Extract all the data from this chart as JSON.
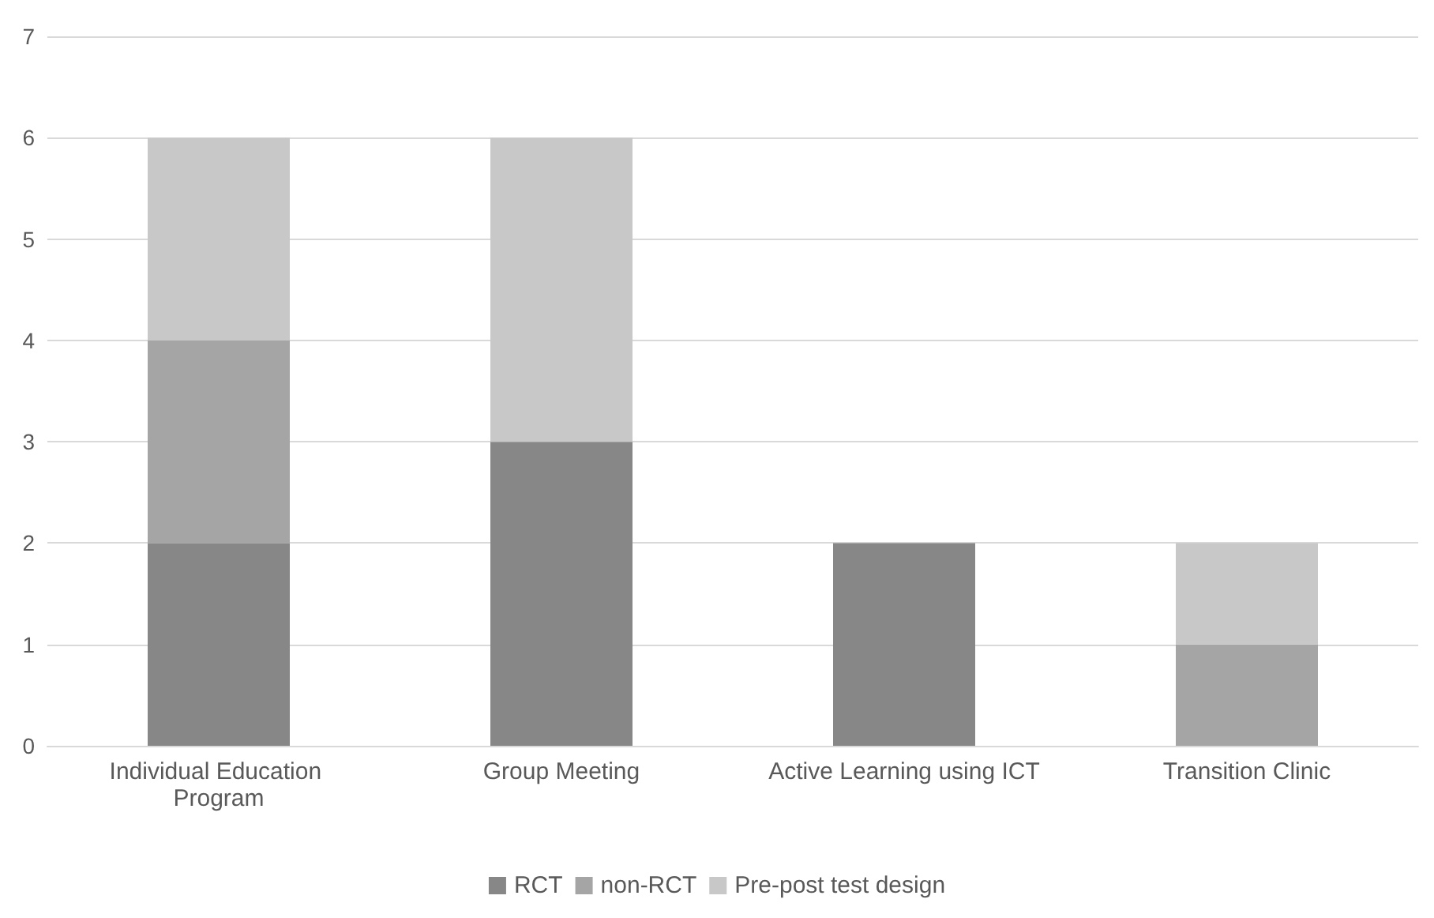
{
  "chart_data": {
    "type": "bar",
    "stacked": true,
    "categories": [
      "Individual Education Program",
      "Group Meeting",
      "Active Learning using ICT",
      "Transition Clinic"
    ],
    "series": [
      {
        "name": "RCT",
        "color": "#878787",
        "values": [
          2,
          3,
          2,
          0
        ]
      },
      {
        "name": "non-RCT",
        "color": "#a5a5a5",
        "values": [
          2,
          0,
          0,
          1
        ]
      },
      {
        "name": "Pre-post test design",
        "color": "#c8c8c8",
        "values": [
          2,
          3,
          0,
          1
        ]
      }
    ],
    "ylim": [
      0,
      7
    ],
    "yticks": [
      0,
      1,
      2,
      3,
      4,
      5,
      6,
      7
    ],
    "grid": "y",
    "legend": "bottom"
  }
}
